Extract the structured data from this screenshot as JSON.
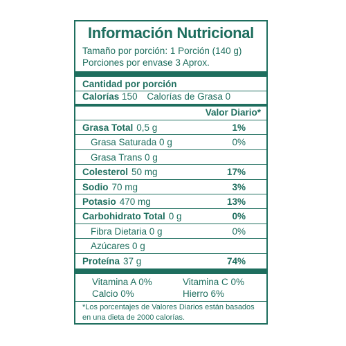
{
  "title": "Información Nutricional",
  "serving_size": "Tamaño por porción: 1 Porción (140 g)",
  "servings_per_container": "Porciones por envase 3 Aprox.",
  "amount_header": "Cantidad por porción",
  "calories_label": "Calorías",
  "calories_value": "150",
  "calories_fat": "Calorías de Grasa 0",
  "dv_header": "Valor Diario*",
  "nutrients": [
    {
      "name": "Grasa Total",
      "amount": "0,5 g",
      "pct": "1%",
      "bold": true
    },
    {
      "name": "Grasa Saturada 0 g",
      "amount": "",
      "pct": "0%",
      "bold": false
    },
    {
      "name": "Grasa Trans 0 g",
      "amount": "",
      "pct": "",
      "bold": false
    },
    {
      "name": "Colesterol",
      "amount": "50 mg",
      "pct": "17%",
      "bold": true
    },
    {
      "name": "Sodio",
      "amount": "70 mg",
      "pct": "3%",
      "bold": true
    },
    {
      "name": "Potasio",
      "amount": "470 mg",
      "pct": "13%",
      "bold": true
    },
    {
      "name": "Carbohidrato Total",
      "amount": "0 g",
      "pct": "0%",
      "bold": true
    },
    {
      "name": "Fibra Dietaria  0 g",
      "amount": "",
      "pct": "0%",
      "bold": false
    },
    {
      "name": "Azúcares 0 g",
      "amount": "",
      "pct": "",
      "bold": false
    },
    {
      "name": "Proteína",
      "amount": "37 g",
      "pct": "74%",
      "bold": true
    }
  ],
  "vitamins": {
    "vit_a": "Vitamina A 0%",
    "vit_c": "Vitamina C 0%",
    "calcium": "Calcio 0%",
    "iron": "Hierro 6%"
  },
  "footnote": "*Los porcentajes de Valores Diarios están basados en una dieta de 2000 calorías.",
  "colors": {
    "ink": "#1e6e5e"
  }
}
